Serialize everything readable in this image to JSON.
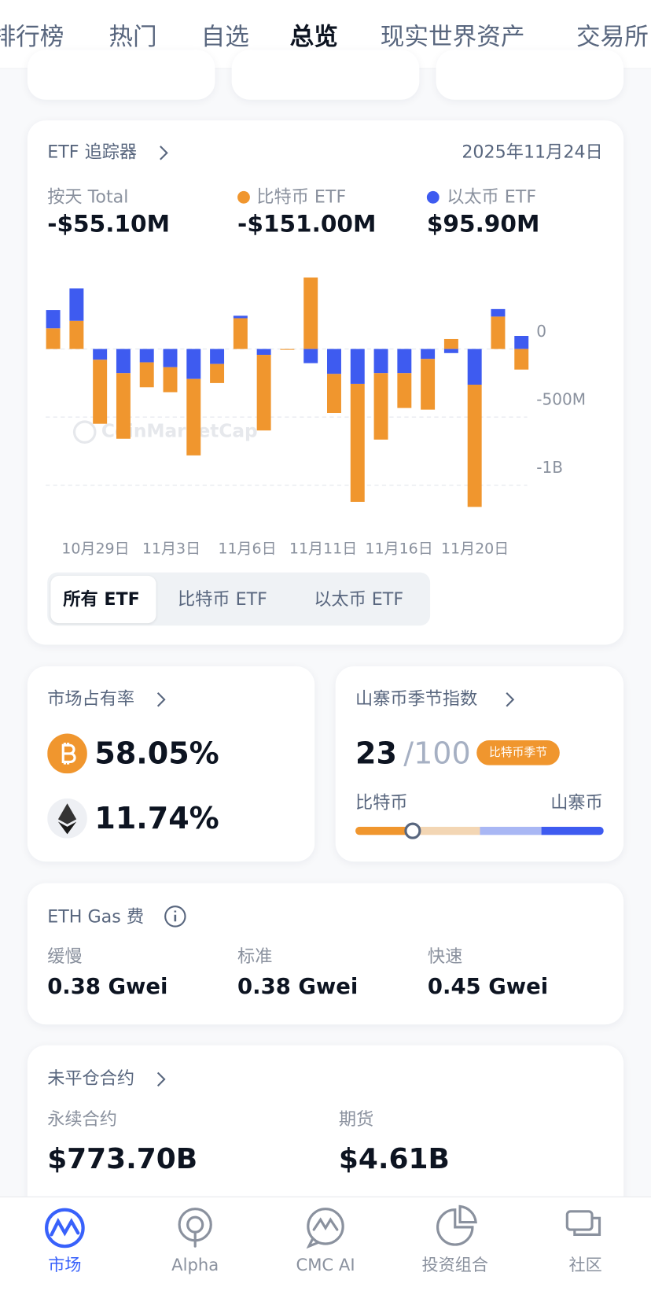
{
  "tabs": [
    "排行榜",
    "热门",
    "自选",
    "总览",
    "现实世界资产",
    "交易所"
  ],
  "etf": {
    "title": "ETF 追踪器",
    "date": "2025年11月24日",
    "stats": [
      {
        "label": "按天 Total",
        "value": "-$55.10M"
      },
      {
        "label": "比特币 ETF",
        "value": "-$151.00M"
      },
      {
        "label": "以太币 ETF",
        "value": "$95.90M"
      }
    ],
    "watermark": "CoinMarketCap",
    "filters": [
      "所有 ETF",
      "比特币 ETF",
      "以太币 ETF"
    ]
  },
  "chart_data": {
    "type": "bar",
    "stacked": true,
    "x_labels": [
      "10月29日",
      "11月3日",
      "11月6日",
      "11月11日",
      "11月16日",
      "11月20日"
    ],
    "series": [
      {
        "name": "比特币 ETF",
        "color": "#f0962e",
        "values": [
          152,
          207,
          -470,
          -482,
          -183,
          -183,
          -561,
          -140,
          226,
          -555,
          -5,
          525,
          -287,
          -866,
          -488,
          -256,
          -372,
          73,
          -897,
          238,
          -151
        ]
      },
      {
        "name": "以太币 ETF",
        "color": "#3e5bf0",
        "values": [
          134,
          238,
          -79,
          -177,
          -98,
          -134,
          -220,
          -110,
          18,
          -43,
          0,
          -104,
          -183,
          -256,
          -177,
          -177,
          -73,
          -30,
          -262,
          55,
          95.9
        ]
      }
    ],
    "ylim": [
      -1170,
      560
    ],
    "yticks": [
      0,
      {
        "value": -500,
        "label": "-500M"
      },
      {
        "value": -1000,
        "label": "-1B"
      }
    ],
    "grid": true
  },
  "market_share": {
    "title": "市场占有率",
    "btc": "58.05%",
    "eth": "11.74%"
  },
  "altseason": {
    "title": "山寨币季节指数",
    "value": 23,
    "max": {
      "value": 100,
      "label": "/100"
    },
    "badge": "比特币季节",
    "left": "比特币",
    "right": "山寨币"
  },
  "gas": {
    "title": "ETH Gas 费",
    "items": [
      {
        "label": "缓慢",
        "value": "0.38 Gwei"
      },
      {
        "label": "标准",
        "value": "0.38 Gwei"
      },
      {
        "label": "快速",
        "value": "0.45 Gwei"
      }
    ]
  },
  "open_interest": {
    "title": "未平仓合约",
    "items": [
      {
        "label": "永续合约",
        "value": "$773.70B"
      },
      {
        "label": "期货",
        "value": "$4.61B"
      }
    ]
  },
  "nav": [
    "市场",
    "Alpha",
    "CMC AI",
    "投资组合",
    "社区"
  ]
}
